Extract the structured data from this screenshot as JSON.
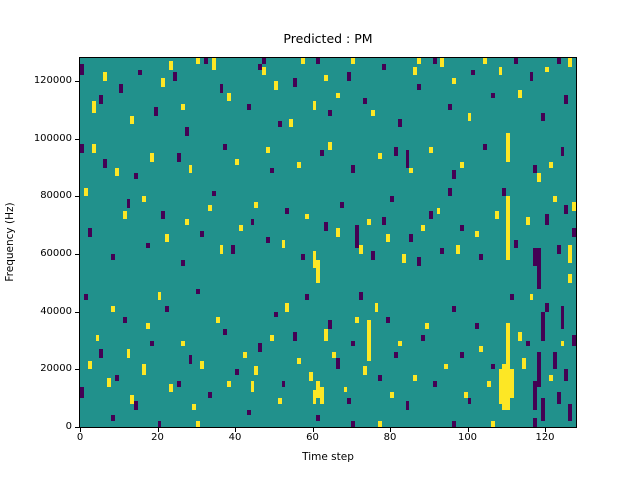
{
  "figure": {
    "background": "#ffffff"
  },
  "chart_data": {
    "type": "heatmap",
    "title": "Predicted : PM",
    "xlabel": "Time step",
    "ylabel": "Frequency (Hz)",
    "x_range": [
      0,
      128
    ],
    "y_range": [
      0,
      128000
    ],
    "xticks": [
      0,
      20,
      40,
      60,
      80,
      100,
      120
    ],
    "yticks": [
      0,
      20000,
      40000,
      60000,
      80000,
      100000,
      120000
    ],
    "grid": {
      "cols": 128,
      "rows": 128,
      "hz_per_row": 1000
    },
    "colors": {
      "background_value": "#21918c",
      "low_value": "#440154",
      "high_value": "#fde725",
      "axes": "#000000",
      "text": "#000000"
    },
    "encoding": "runs are [time_step, freq_bin_start, run_length_upward]; freq = bin * 1000 Hz",
    "high_runs": [
      [
        3,
        109,
        4
      ],
      [
        6,
        120,
        3
      ],
      [
        13,
        105,
        3
      ],
      [
        21,
        118,
        3
      ],
      [
        23,
        124,
        3
      ],
      [
        26,
        110,
        2
      ],
      [
        30,
        126,
        2
      ],
      [
        34,
        124,
        4
      ],
      [
        38,
        113,
        3
      ],
      [
        47,
        122,
        3
      ],
      [
        50,
        117,
        3
      ],
      [
        54,
        104,
        3
      ],
      [
        57,
        126,
        2
      ],
      [
        60,
        110,
        3
      ],
      [
        63,
        120,
        2
      ],
      [
        66,
        114,
        2
      ],
      [
        70,
        126,
        2
      ],
      [
        75,
        108,
        2
      ],
      [
        86,
        122,
        3
      ],
      [
        87,
        126,
        2
      ],
      [
        93,
        125,
        3
      ],
      [
        96,
        119,
        2
      ],
      [
        100,
        106,
        3
      ],
      [
        104,
        126,
        2
      ],
      [
        108,
        122,
        3
      ],
      [
        113,
        114,
        3
      ],
      [
        120,
        123,
        2
      ],
      [
        126,
        125,
        3
      ],
      [
        3,
        95,
        3
      ],
      [
        9,
        87,
        3
      ],
      [
        18,
        92,
        3
      ],
      [
        28,
        88,
        3
      ],
      [
        40,
        91,
        2
      ],
      [
        48,
        95,
        2
      ],
      [
        56,
        90,
        2
      ],
      [
        64,
        96,
        3
      ],
      [
        77,
        93,
        2
      ],
      [
        85,
        88,
        2
      ],
      [
        90,
        95,
        2
      ],
      [
        98,
        90,
        2
      ],
      [
        110,
        92,
        10
      ],
      [
        121,
        90,
        2
      ],
      [
        1,
        80,
        3
      ],
      [
        11,
        72,
        3
      ],
      [
        16,
        78,
        2
      ],
      [
        22,
        64,
        3
      ],
      [
        27,
        70,
        2
      ],
      [
        33,
        75,
        2
      ],
      [
        36,
        60,
        3
      ],
      [
        41,
        68,
        2
      ],
      [
        45,
        76,
        2
      ],
      [
        52,
        62,
        3
      ],
      [
        58,
        72,
        2
      ],
      [
        60,
        55,
        6
      ],
      [
        61,
        50,
        8
      ],
      [
        66,
        66,
        3
      ],
      [
        72,
        60,
        3
      ],
      [
        74,
        70,
        2
      ],
      [
        79,
        64,
        3
      ],
      [
        83,
        57,
        3
      ],
      [
        88,
        68,
        2
      ],
      [
        92,
        74,
        2
      ],
      [
        97,
        60,
        3
      ],
      [
        102,
        66,
        2
      ],
      [
        107,
        72,
        3
      ],
      [
        110,
        58,
        22
      ],
      [
        115,
        70,
        3
      ],
      [
        118,
        85,
        3
      ],
      [
        122,
        78,
        2
      ],
      [
        126,
        57,
        6
      ],
      [
        127,
        75,
        3
      ],
      [
        2,
        20,
        3
      ],
      [
        4,
        30,
        2
      ],
      [
        7,
        14,
        3
      ],
      [
        8,
        40,
        2
      ],
      [
        12,
        24,
        3
      ],
      [
        13,
        8,
        3
      ],
      [
        16,
        18,
        4
      ],
      [
        17,
        34,
        2
      ],
      [
        20,
        44,
        3
      ],
      [
        23,
        12,
        3
      ],
      [
        26,
        28,
        2
      ],
      [
        29,
        6,
        2
      ],
      [
        30,
        0,
        2
      ],
      [
        31,
        20,
        3
      ],
      [
        35,
        36,
        2
      ],
      [
        38,
        14,
        2
      ],
      [
        42,
        24,
        2
      ],
      [
        44,
        12,
        4
      ],
      [
        45,
        18,
        3
      ],
      [
        49,
        30,
        2
      ],
      [
        51,
        8,
        2
      ],
      [
        53,
        40,
        3
      ],
      [
        56,
        22,
        2
      ],
      [
        59,
        16,
        3
      ],
      [
        60,
        8,
        5
      ],
      [
        61,
        10,
        6
      ],
      [
        62,
        8,
        6
      ],
      [
        63,
        30,
        4
      ],
      [
        65,
        24,
        2
      ],
      [
        68,
        12,
        2
      ],
      [
        71,
        36,
        2
      ],
      [
        73,
        18,
        3
      ],
      [
        74,
        23,
        14
      ],
      [
        76,
        40,
        3
      ],
      [
        77,
        0,
        2
      ],
      [
        80,
        10,
        2
      ],
      [
        82,
        28,
        2
      ],
      [
        86,
        16,
        2
      ],
      [
        89,
        34,
        2
      ],
      [
        94,
        20,
        2
      ],
      [
        99,
        10,
        2
      ],
      [
        103,
        26,
        2
      ],
      [
        105,
        14,
        2
      ],
      [
        106,
        0,
        2
      ],
      [
        108,
        8,
        12
      ],
      [
        109,
        6,
        16
      ],
      [
        110,
        6,
        30
      ],
      [
        111,
        10,
        10
      ],
      [
        113,
        30,
        3
      ],
      [
        114,
        20,
        4
      ],
      [
        116,
        44,
        2
      ],
      [
        121,
        16,
        2
      ],
      [
        124,
        28,
        2
      ],
      [
        126,
        50,
        3
      ]
    ],
    "low_runs": [
      [
        0,
        122,
        4
      ],
      [
        5,
        112,
        3
      ],
      [
        10,
        116,
        3
      ],
      [
        15,
        122,
        2
      ],
      [
        19,
        108,
        3
      ],
      [
        24,
        120,
        3
      ],
      [
        27,
        101,
        3
      ],
      [
        32,
        126,
        2
      ],
      [
        36,
        116,
        3
      ],
      [
        43,
        110,
        2
      ],
      [
        46,
        124,
        2
      ],
      [
        47,
        126,
        2
      ],
      [
        51,
        104,
        2
      ],
      [
        55,
        118,
        3
      ],
      [
        61,
        126,
        2
      ],
      [
        64,
        108,
        2
      ],
      [
        69,
        120,
        3
      ],
      [
        73,
        112,
        2
      ],
      [
        78,
        124,
        2
      ],
      [
        82,
        104,
        3
      ],
      [
        87,
        117,
        2
      ],
      [
        91,
        126,
        2
      ],
      [
        95,
        110,
        2
      ],
      [
        101,
        122,
        2
      ],
      [
        106,
        114,
        2
      ],
      [
        112,
        126,
        2
      ],
      [
        116,
        120,
        3
      ],
      [
        119,
        106,
        3
      ],
      [
        123,
        126,
        3
      ],
      [
        125,
        112,
        3
      ],
      [
        0,
        95,
        3
      ],
      [
        6,
        90,
        3
      ],
      [
        14,
        86,
        2
      ],
      [
        25,
        92,
        3
      ],
      [
        37,
        96,
        2
      ],
      [
        49,
        88,
        2
      ],
      [
        62,
        94,
        2
      ],
      [
        70,
        88,
        3
      ],
      [
        81,
        94,
        3
      ],
      [
        84,
        90,
        6
      ],
      [
        96,
        86,
        3
      ],
      [
        104,
        96,
        2
      ],
      [
        117,
        88,
        3
      ],
      [
        124,
        94,
        3
      ],
      [
        2,
        66,
        3
      ],
      [
        8,
        58,
        2
      ],
      [
        12,
        76,
        3
      ],
      [
        17,
        62,
        2
      ],
      [
        21,
        72,
        3
      ],
      [
        26,
        56,
        2
      ],
      [
        31,
        66,
        2
      ],
      [
        34,
        80,
        2
      ],
      [
        39,
        60,
        3
      ],
      [
        44,
        70,
        2
      ],
      [
        48,
        64,
        2
      ],
      [
        53,
        74,
        2
      ],
      [
        57,
        58,
        2
      ],
      [
        63,
        68,
        3
      ],
      [
        67,
        76,
        2
      ],
      [
        71,
        62,
        8
      ],
      [
        75,
        58,
        3
      ],
      [
        78,
        70,
        3
      ],
      [
        80,
        78,
        2
      ],
      [
        85,
        64,
        3
      ],
      [
        87,
        56,
        3
      ],
      [
        90,
        72,
        3
      ],
      [
        93,
        60,
        2
      ],
      [
        95,
        80,
        3
      ],
      [
        98,
        68,
        2
      ],
      [
        103,
        58,
        2
      ],
      [
        109,
        80,
        3
      ],
      [
        112,
        62,
        3
      ],
      [
        117,
        56,
        6
      ],
      [
        118,
        48,
        14
      ],
      [
        119,
        30,
        10
      ],
      [
        120,
        70,
        4
      ],
      [
        123,
        60,
        3
      ],
      [
        125,
        74,
        3
      ],
      [
        127,
        66,
        3
      ],
      [
        0,
        10,
        4
      ],
      [
        1,
        44,
        2
      ],
      [
        5,
        24,
        3
      ],
      [
        8,
        2,
        2
      ],
      [
        9,
        16,
        2
      ],
      [
        11,
        36,
        2
      ],
      [
        14,
        6,
        3
      ],
      [
        18,
        28,
        2
      ],
      [
        20,
        0,
        2
      ],
      [
        22,
        40,
        2
      ],
      [
        25,
        14,
        2
      ],
      [
        28,
        22,
        3
      ],
      [
        30,
        46,
        2
      ],
      [
        33,
        10,
        2
      ],
      [
        37,
        32,
        2
      ],
      [
        40,
        18,
        2
      ],
      [
        43,
        4,
        2
      ],
      [
        46,
        26,
        3
      ],
      [
        50,
        38,
        2
      ],
      [
        52,
        14,
        2
      ],
      [
        55,
        30,
        3
      ],
      [
        58,
        44,
        2
      ],
      [
        61,
        2,
        2
      ],
      [
        64,
        34,
        3
      ],
      [
        66,
        20,
        4
      ],
      [
        69,
        8,
        2
      ],
      [
        70,
        0,
        2
      ],
      [
        70,
        28,
        2
      ],
      [
        72,
        44,
        3
      ],
      [
        77,
        16,
        2
      ],
      [
        79,
        36,
        2
      ],
      [
        81,
        24,
        2
      ],
      [
        84,
        6,
        3
      ],
      [
        88,
        30,
        2
      ],
      [
        91,
        14,
        2
      ],
      [
        96,
        0,
        2
      ],
      [
        96,
        40,
        2
      ],
      [
        98,
        24,
        2
      ],
      [
        100,
        8,
        2
      ],
      [
        102,
        34,
        2
      ],
      [
        106,
        20,
        2
      ],
      [
        111,
        44,
        2
      ],
      [
        115,
        28,
        2
      ],
      [
        117,
        0,
        3
      ],
      [
        117,
        6,
        10
      ],
      [
        118,
        14,
        12
      ],
      [
        119,
        2,
        8
      ],
      [
        120,
        40,
        3
      ],
      [
        122,
        20,
        6
      ],
      [
        123,
        8,
        4
      ],
      [
        124,
        34,
        8
      ],
      [
        125,
        16,
        4
      ],
      [
        126,
        2,
        6
      ],
      [
        127,
        28,
        4
      ]
    ]
  }
}
